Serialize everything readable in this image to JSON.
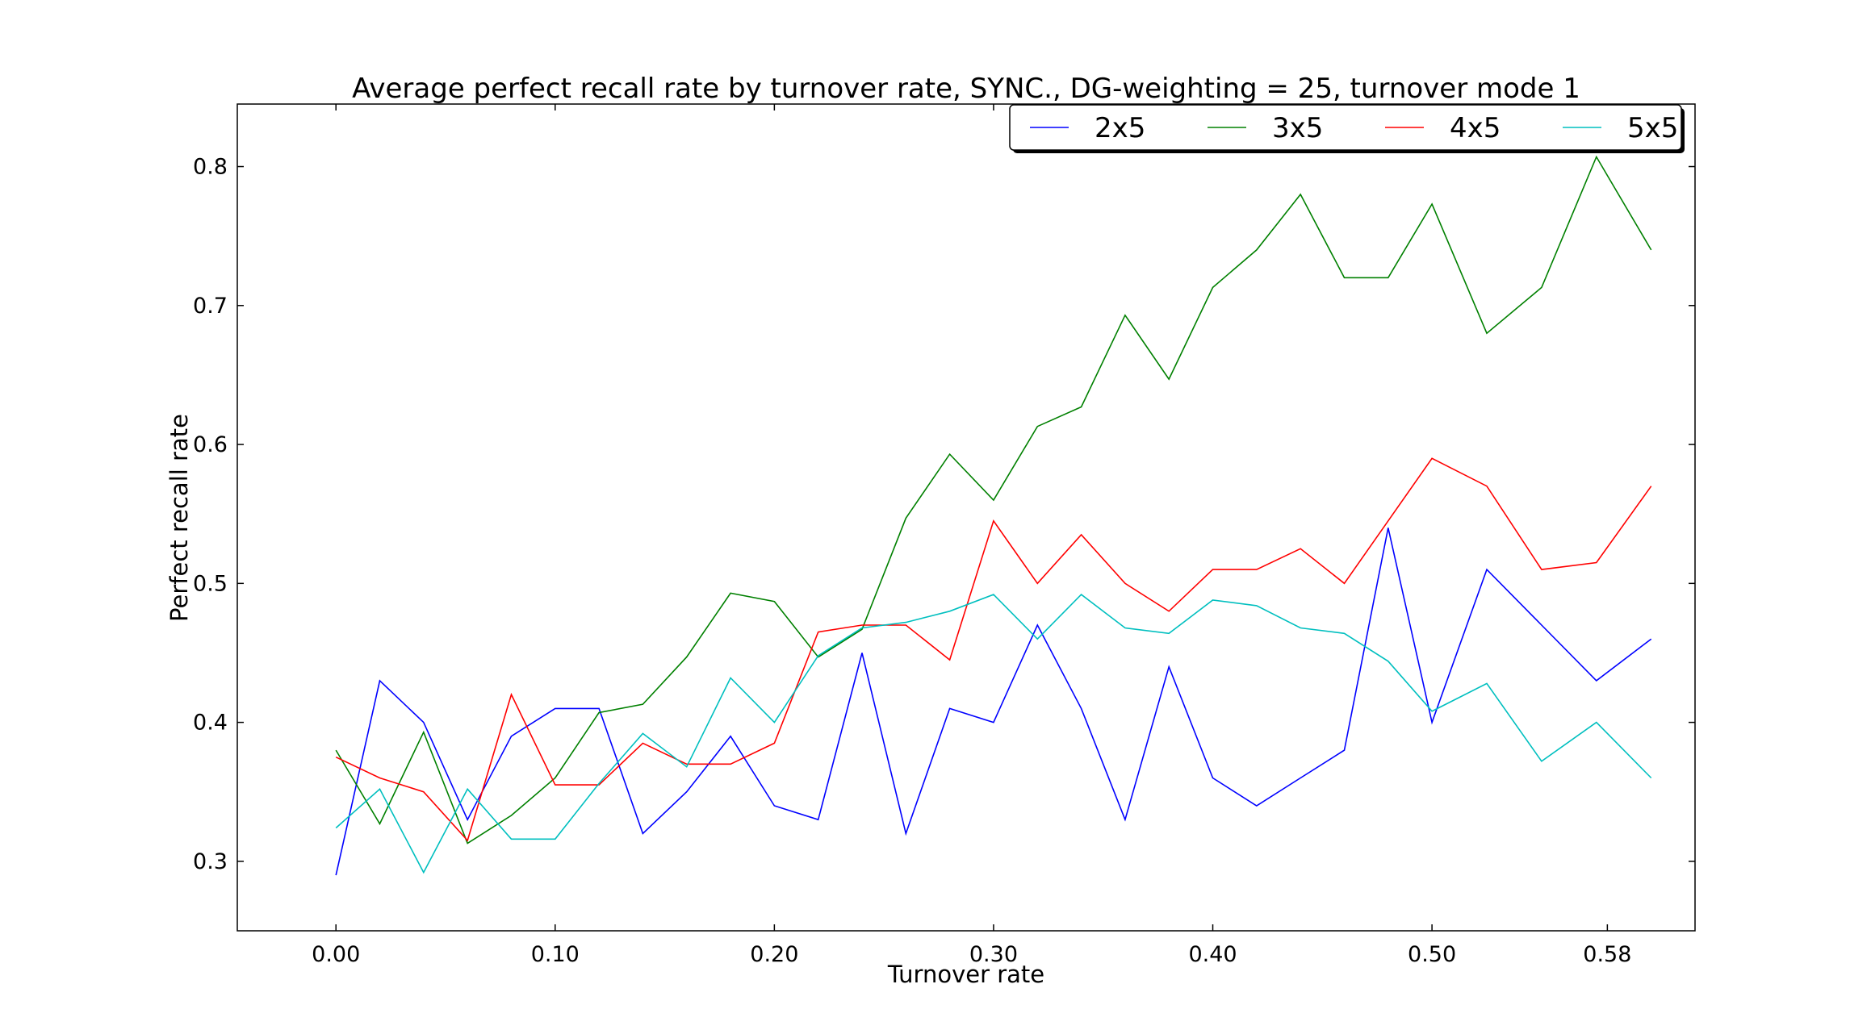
{
  "chart_data": {
    "type": "line",
    "title": "Average perfect recall rate by turnover rate, SYNC., DG-weighting = 25, turnover mode 1",
    "xlabel": "Turnover rate",
    "ylabel": "Perfect recall rate",
    "xlim": [
      -0.045,
      0.62
    ],
    "ylim": [
      0.25,
      0.845
    ],
    "xticks": [
      0.0,
      0.1,
      0.2,
      0.3,
      0.4,
      0.5,
      0.58
    ],
    "xtick_labels": [
      "0.00",
      "0.10",
      "0.20",
      "0.30",
      "0.40",
      "0.50",
      "0.58"
    ],
    "yticks": [
      0.3,
      0.4,
      0.5,
      0.6,
      0.7,
      0.8
    ],
    "ytick_labels": [
      "0.3",
      "0.4",
      "0.5",
      "0.6",
      "0.7",
      "0.8"
    ],
    "legend_position": "top-right",
    "grid": false,
    "x": [
      0.0,
      0.02,
      0.04,
      0.06,
      0.08,
      0.1,
      0.12,
      0.14,
      0.16,
      0.18,
      0.2,
      0.22,
      0.24,
      0.26,
      0.28,
      0.3,
      0.32,
      0.34,
      0.36,
      0.38,
      0.4,
      0.42,
      0.44,
      0.46,
      0.48,
      0.5,
      0.525,
      0.55,
      0.575,
      0.6
    ],
    "series": [
      {
        "name": "2x5",
        "color": "#0000ff",
        "values": [
          0.29,
          0.43,
          0.4,
          0.33,
          0.39,
          0.41,
          0.41,
          0.32,
          0.35,
          0.39,
          0.34,
          0.33,
          0.45,
          0.32,
          0.41,
          0.4,
          0.47,
          0.41,
          0.33,
          0.44,
          0.36,
          0.34,
          0.36,
          0.38,
          0.54,
          0.4,
          0.51,
          0.47,
          0.43,
          0.46
        ]
      },
      {
        "name": "3x5",
        "color": "#008000",
        "values": [
          0.38,
          0.327,
          0.393,
          0.313,
          0.333,
          0.36,
          0.407,
          0.413,
          0.447,
          0.493,
          0.487,
          0.447,
          0.467,
          0.547,
          0.593,
          0.56,
          0.613,
          0.627,
          0.693,
          0.647,
          0.713,
          0.74,
          0.78,
          0.72,
          0.72,
          0.773,
          0.68,
          0.713,
          0.807,
          0.74
        ]
      },
      {
        "name": "4x5",
        "color": "#ff0000",
        "values": [
          0.375,
          0.36,
          0.35,
          0.315,
          0.42,
          0.355,
          0.355,
          0.385,
          0.37,
          0.37,
          0.385,
          0.465,
          0.47,
          0.47,
          0.445,
          0.545,
          0.5,
          0.535,
          0.5,
          0.48,
          0.51,
          0.51,
          0.525,
          0.5,
          0.545,
          0.59,
          0.57,
          0.51,
          0.515,
          0.57
        ]
      },
      {
        "name": "5x5",
        "color": "#00bfbf",
        "values": [
          0.324,
          0.352,
          0.292,
          0.352,
          0.316,
          0.316,
          0.356,
          0.392,
          0.368,
          0.432,
          0.4,
          0.448,
          0.468,
          0.472,
          0.48,
          0.492,
          0.46,
          0.492,
          0.468,
          0.464,
          0.488,
          0.484,
          0.468,
          0.464,
          0.444,
          0.408,
          0.428,
          0.372,
          0.4,
          0.36
        ]
      }
    ]
  }
}
